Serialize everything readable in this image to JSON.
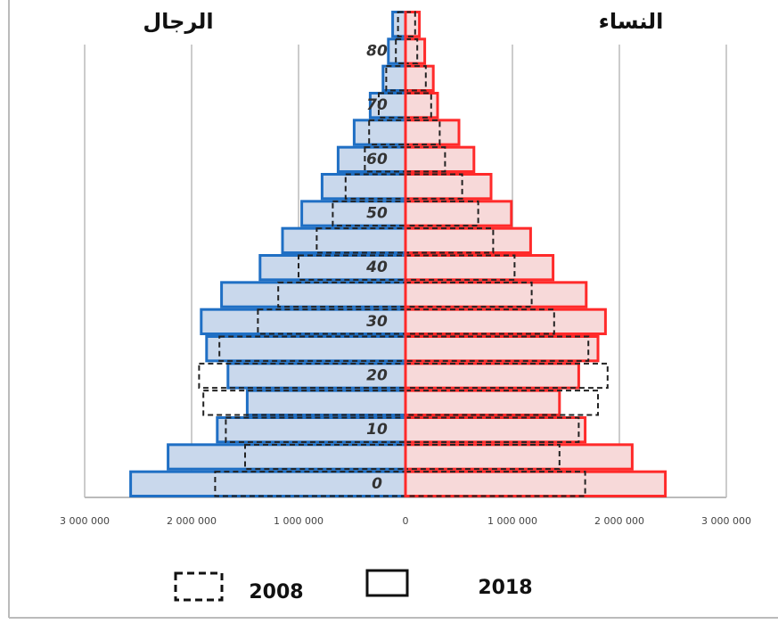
{
  "chart_data": {
    "type": "pyramid",
    "left_label": "الرجال",
    "right_label": "النساء",
    "left_color": "#1f6fc4",
    "left_fill": "#c9d8ec",
    "right_color": "#ff2a2a",
    "right_fill": "#f7d9d9",
    "dash_color": "#222222",
    "categories": [
      "0",
      null,
      "10",
      null,
      "20",
      null,
      "30",
      null,
      "40",
      null,
      "50",
      null,
      "60",
      null,
      "70",
      null,
      "80",
      null
    ],
    "series": [
      {
        "name": "2018",
        "style": "solid",
        "men": [
          2570000,
          2220000,
          1760000,
          1480000,
          1660000,
          1860000,
          1910000,
          1720000,
          1360000,
          1150000,
          970000,
          780000,
          630000,
          480000,
          330000,
          210000,
          160000,
          120000
        ],
        "women": [
          2430000,
          2120000,
          1680000,
          1440000,
          1620000,
          1800000,
          1870000,
          1690000,
          1380000,
          1170000,
          990000,
          800000,
          640000,
          500000,
          300000,
          260000,
          180000,
          130000
        ]
      },
      {
        "name": "2008",
        "style": "dashed",
        "men": [
          1780000,
          1500000,
          1680000,
          1890000,
          1930000,
          1740000,
          1380000,
          1190000,
          1000000,
          830000,
          680000,
          560000,
          380000,
          340000,
          250000,
          180000,
          90000,
          70000
        ],
        "women": [
          1680000,
          1440000,
          1620000,
          1800000,
          1890000,
          1710000,
          1390000,
          1180000,
          1020000,
          820000,
          680000,
          530000,
          370000,
          320000,
          240000,
          190000,
          110000,
          90000
        ]
      }
    ],
    "xlim": [
      -3000000,
      3000000
    ],
    "xticks": [
      {
        "value": -3000000,
        "label": "3 000 000"
      },
      {
        "value": -2000000,
        "label": "2 000 000"
      },
      {
        "value": -1000000,
        "label": "1 000 000"
      },
      0,
      {
        "value": 1000000,
        "label": "1 000 000"
      },
      {
        "value": 2000000,
        "label": "2 000 000"
      },
      {
        "value": 3000000,
        "label": "3 000 000"
      }
    ],
    "grid": true
  }
}
